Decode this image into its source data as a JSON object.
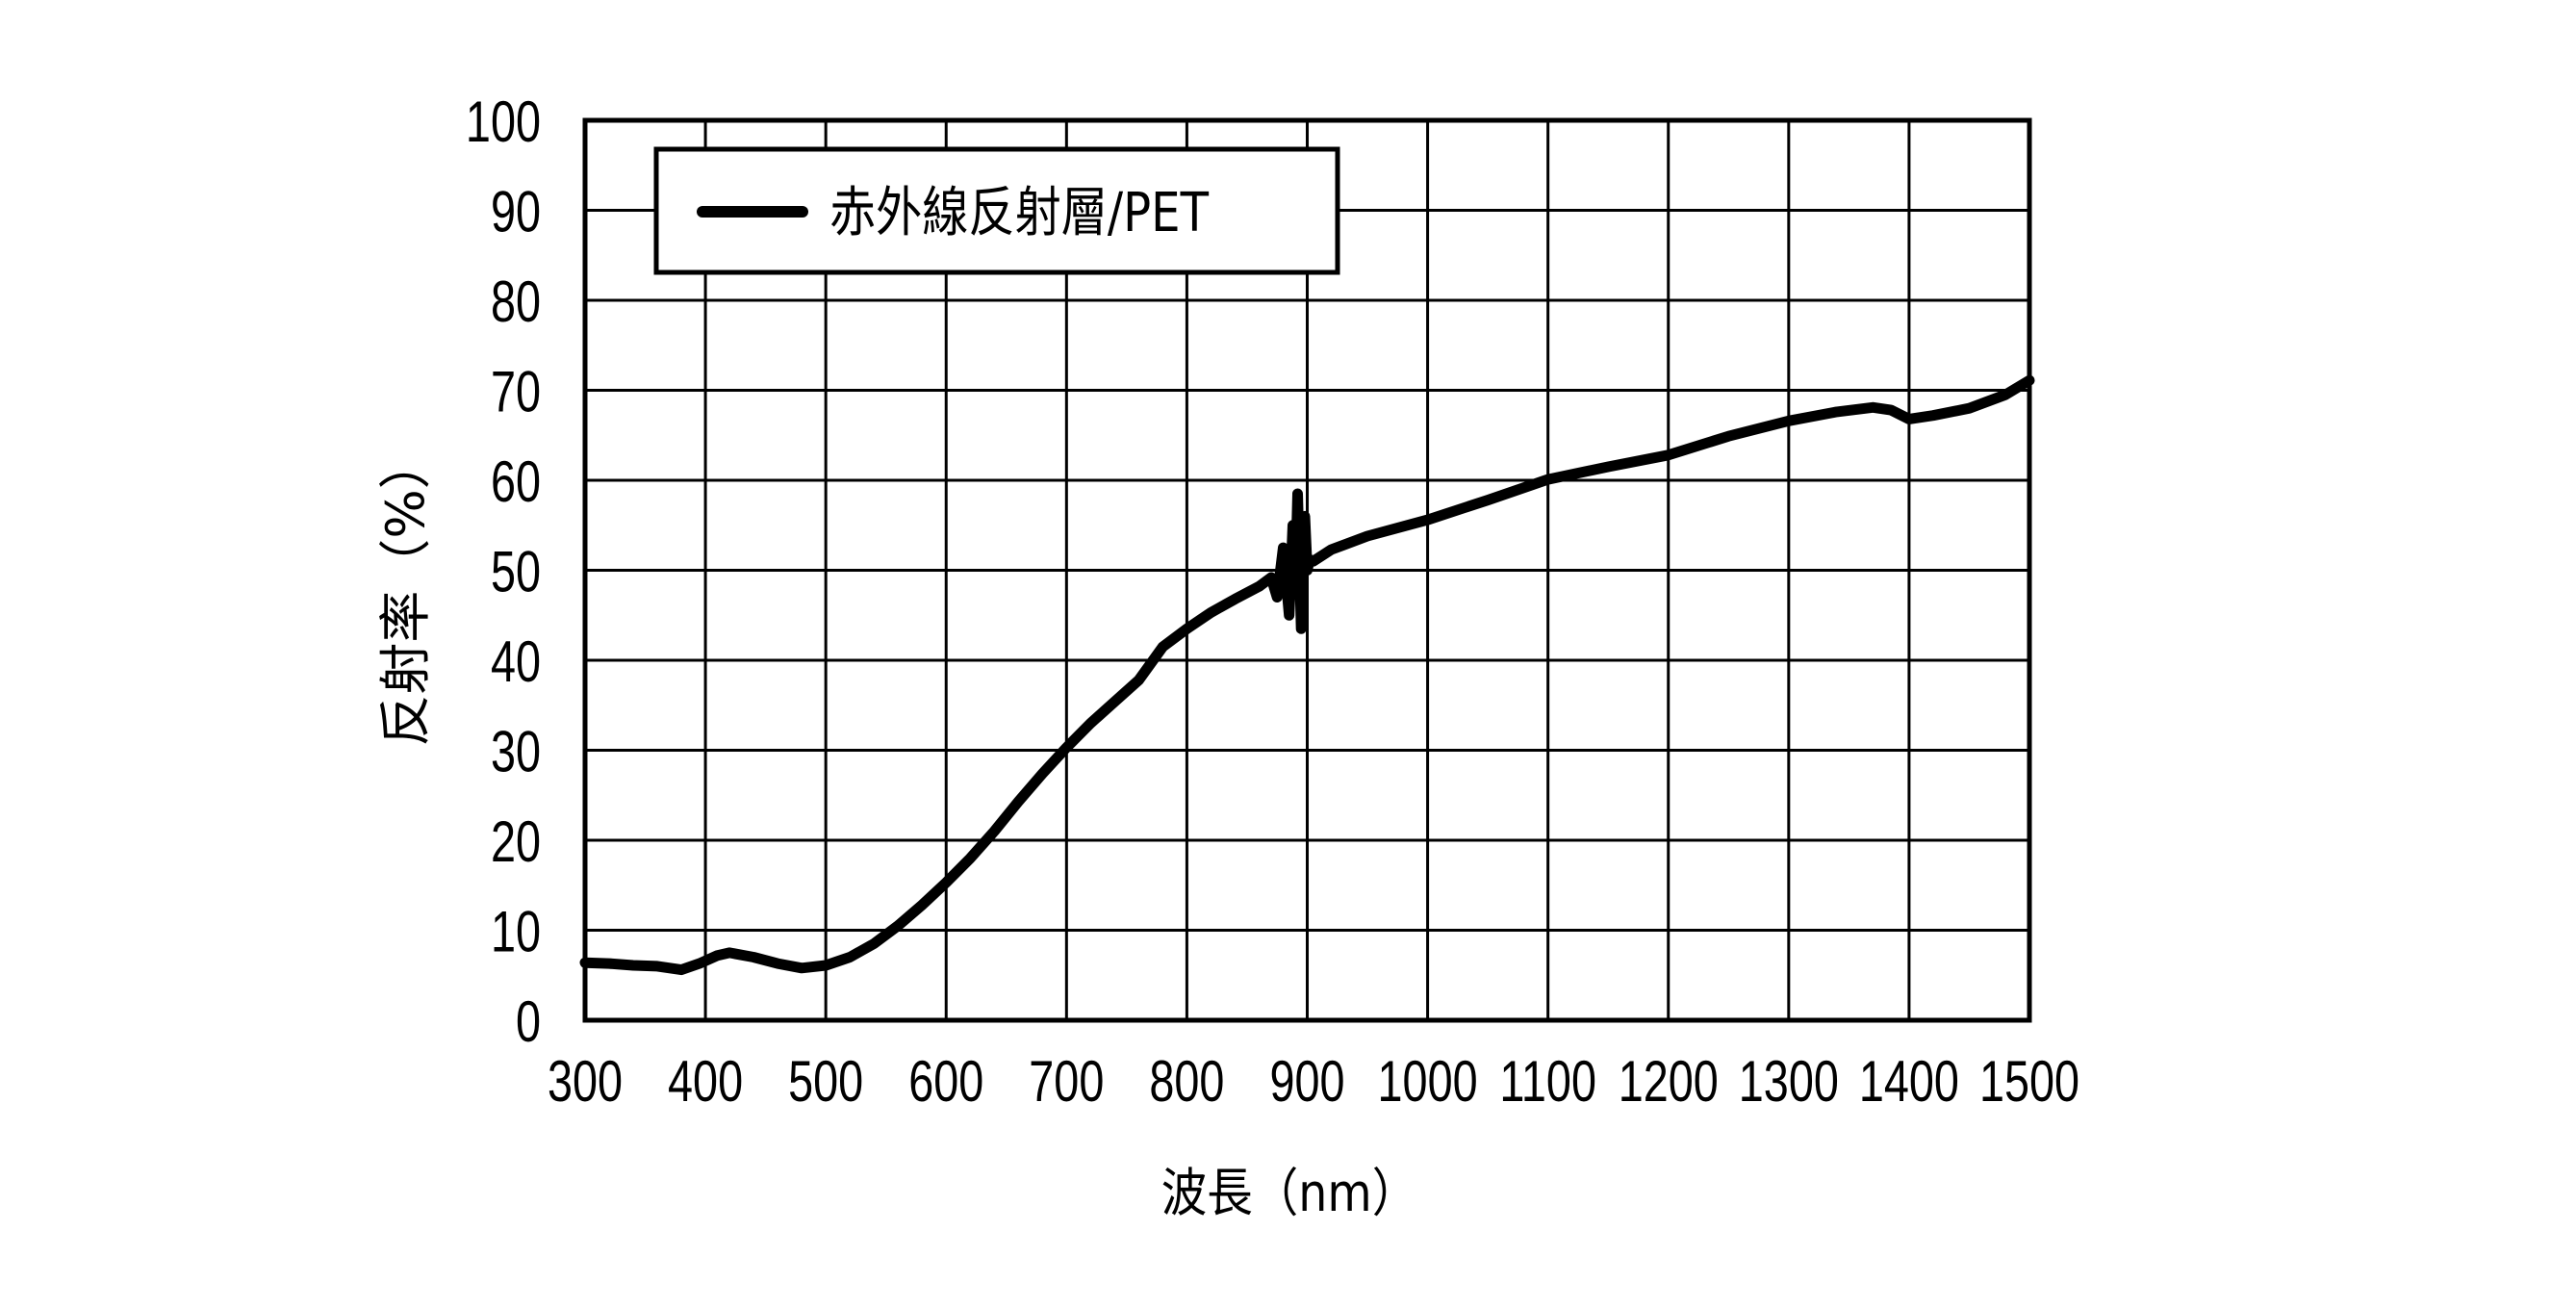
{
  "chart_data": {
    "type": "line",
    "title": "",
    "xlabel": "波長（nm）",
    "ylabel": "反射率（%）",
    "xlim": [
      300,
      1500
    ],
    "ylim": [
      0,
      100
    ],
    "xticks": [
      300,
      400,
      500,
      600,
      700,
      800,
      900,
      1000,
      1100,
      1200,
      1300,
      1400,
      1500
    ],
    "yticks": [
      0,
      10,
      20,
      30,
      40,
      50,
      60,
      70,
      80,
      90,
      100
    ],
    "grid": true,
    "legend_position": "upper-left",
    "series": [
      {
        "name": "赤外線反射層/PET",
        "color": "#000000",
        "x": [
          300,
          320,
          340,
          360,
          380,
          395,
          410,
          420,
          440,
          460,
          480,
          500,
          520,
          540,
          560,
          580,
          600,
          620,
          640,
          660,
          680,
          700,
          720,
          740,
          760,
          780,
          800,
          820,
          840,
          860,
          870,
          875,
          880,
          885,
          888,
          890,
          892,
          895,
          898,
          900,
          902,
          905,
          920,
          950,
          1000,
          1050,
          1100,
          1150,
          1200,
          1250,
          1300,
          1340,
          1370,
          1385,
          1400,
          1420,
          1450,
          1480,
          1500
        ],
        "y": [
          6.4,
          6.3,
          6.1,
          6.0,
          5.6,
          6.3,
          7.2,
          7.5,
          7.0,
          6.3,
          5.8,
          6.1,
          7.0,
          8.5,
          10.5,
          12.8,
          15.3,
          18.0,
          21.0,
          24.3,
          27.4,
          30.3,
          33.0,
          35.4,
          37.8,
          41.5,
          43.5,
          45.3,
          46.8,
          48.2,
          49.2,
          47.0,
          52.5,
          45.0,
          55.0,
          48.0,
          58.5,
          43.5,
          56.0,
          50.0,
          51.2,
          51.0,
          52.3,
          53.8,
          55.6,
          57.8,
          60.1,
          61.5,
          62.8,
          64.9,
          66.6,
          67.6,
          68.1,
          67.8,
          66.8,
          67.2,
          68.0,
          69.5,
          71.1
        ]
      }
    ]
  }
}
